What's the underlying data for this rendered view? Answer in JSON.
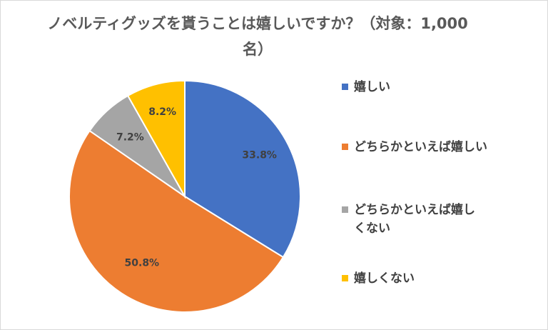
{
  "chart_data": {
    "type": "pie",
    "title": "ノベルティグッズを貰うことは嬉しいですか？（対象：1,000名）",
    "start_angle_deg": 0,
    "direction": "clockwise",
    "legend_position": "right",
    "categories": [
      "嬉しい",
      "どちらかといえば嬉しい",
      "どちらかといえば嬉しくない",
      "嬉しくない"
    ],
    "values": [
      33.8,
      50.8,
      7.2,
      8.2
    ],
    "data_labels": [
      "33.8%",
      "50.8%",
      "7.2%",
      "8.2%"
    ],
    "colors": [
      "#4472C4",
      "#ED7D31",
      "#A5A5A5",
      "#FFC000"
    ]
  }
}
